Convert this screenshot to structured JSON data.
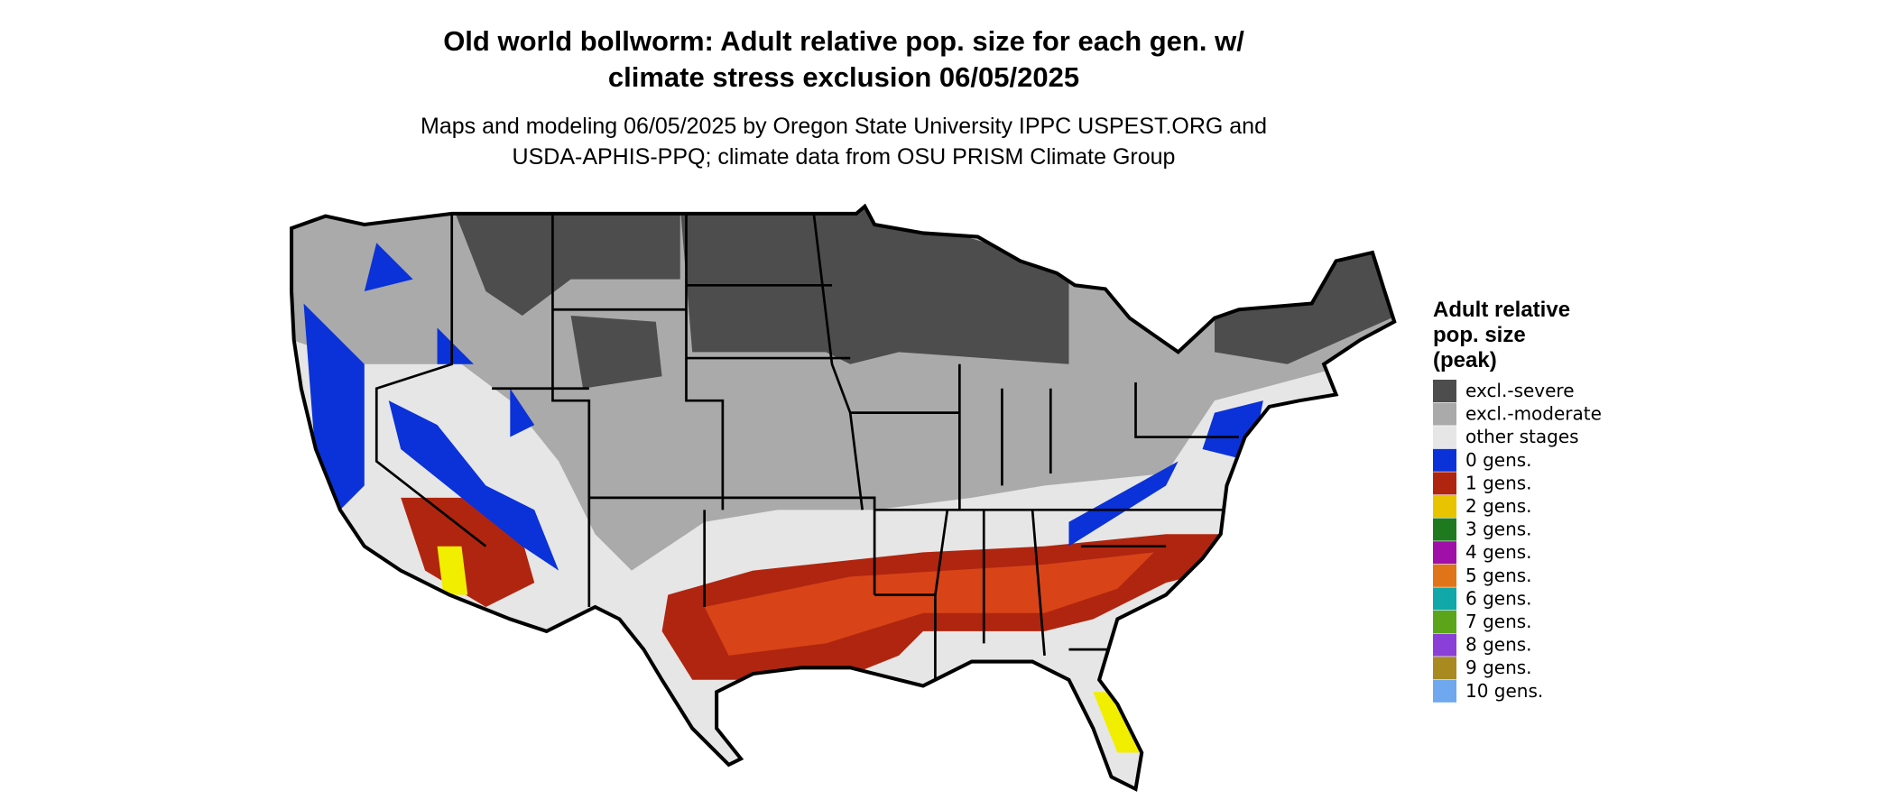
{
  "title": [
    "Old world bollworm: Adult relative pop. size for each gen. w/",
    "climate stress exclusion 06/05/2025"
  ],
  "subtitle": [
    "Maps and modeling 06/05/2025 by Oregon State University IPPC USPEST.ORG and",
    "USDA-APHIS-PPQ; climate data from OSU PRISM Climate Group"
  ],
  "legend": {
    "title": [
      "Adult relative",
      "pop. size",
      "(peak)"
    ],
    "items": [
      {
        "label": "excl.-severe",
        "color": "#4d4d4d"
      },
      {
        "label": "excl.-moderate",
        "color": "#aaaaaa"
      },
      {
        "label": "other stages",
        "color": "#e6e6e6"
      },
      {
        "label": "0 gens.",
        "color": "#0a32d8"
      },
      {
        "label": "1 gens.",
        "color": "#b0250f"
      },
      {
        "label": "2 gens.",
        "color": "#e8c400"
      },
      {
        "label": "3 gens.",
        "color": "#1f7a1f"
      },
      {
        "label": "4 gens.",
        "color": "#a010a8"
      },
      {
        "label": "5 gens.",
        "color": "#e07418"
      },
      {
        "label": "6 gens.",
        "color": "#10a8a8"
      },
      {
        "label": "7 gens.",
        "color": "#5ca51a"
      },
      {
        "label": "8 gens.",
        "color": "#8a3fd8"
      },
      {
        "label": "9 gens.",
        "color": "#a88a20"
      },
      {
        "label": "10 gens.",
        "color": "#6fa8ee"
      }
    ]
  }
}
